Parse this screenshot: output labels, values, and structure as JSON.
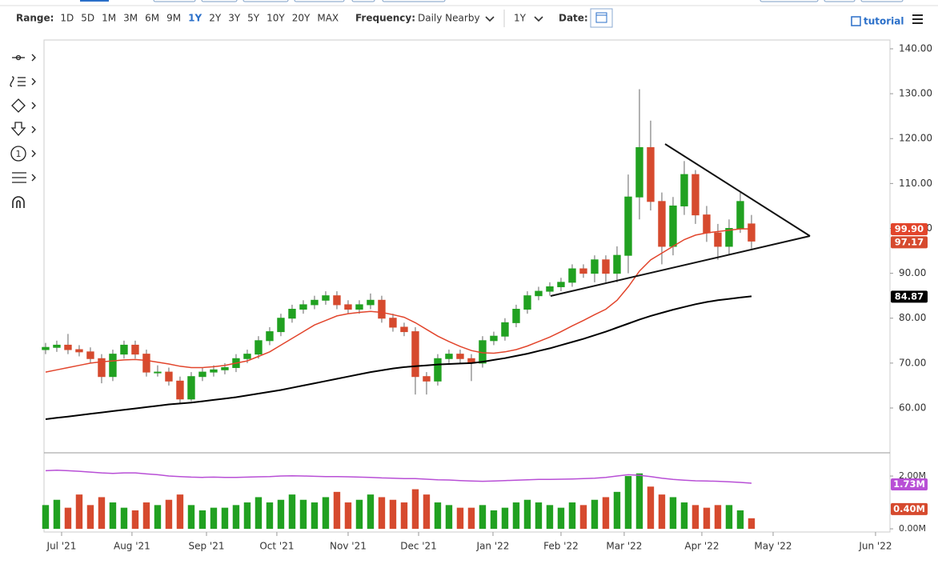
{
  "toolbar": {
    "range_label": "Range:",
    "ranges": [
      "1D",
      "5D",
      "1M",
      "3M",
      "6M",
      "9M",
      "1Y",
      "2Y",
      "3Y",
      "5Y",
      "10Y",
      "20Y",
      "MAX"
    ],
    "selected_range": 6,
    "frequency_label": "Frequency:",
    "frequency": "Daily Nearby",
    "period": "1Y",
    "date_label": "Date:",
    "tutorial": "tutorial"
  },
  "chart_data": {
    "type": "candlestick",
    "up_color": "#21a121",
    "down_color": "#d64a2e",
    "xlim": [
      -0.14,
      75.36
    ],
    "xticks": [
      {
        "value": 1.43,
        "label": "Jul '21"
      },
      {
        "value": 7.71,
        "label": "Aug '21"
      },
      {
        "value": 14.36,
        "label": "Sep '21"
      },
      {
        "value": 20.64,
        "label": "Oct '21"
      },
      {
        "value": 27,
        "label": "Nov '21"
      },
      {
        "value": 33.29,
        "label": "Dec '21"
      },
      {
        "value": 39.93,
        "label": "Jan '22"
      },
      {
        "value": 46,
        "label": "Feb '22"
      },
      {
        "value": 51.64,
        "label": "Mar '22"
      },
      {
        "value": 58.57,
        "label": "Apr '22"
      },
      {
        "value": 64.93,
        "label": "May '22"
      },
      {
        "value": 74.07,
        "label": "Jun '22"
      }
    ],
    "ylim": [
      50.2,
      141.96
    ],
    "yticks": [
      {
        "value": 60,
        "label": "60.00"
      },
      {
        "value": 70,
        "label": "70.00"
      },
      {
        "value": 80,
        "label": "80.00"
      },
      {
        "value": 90,
        "label": "90.00"
      },
      {
        "value": 100,
        "label": "100.00"
      },
      {
        "value": 110,
        "label": "110.00"
      },
      {
        "value": 120,
        "label": "120.00"
      },
      {
        "value": 130,
        "label": "130.00"
      },
      {
        "value": 140,
        "label": "140.00"
      }
    ],
    "open": [
      73,
      73.5,
      74,
      73,
      72.5,
      71,
      67,
      72,
      74,
      72,
      68,
      68,
      66,
      62,
      67,
      68,
      68.5,
      69,
      71,
      72,
      75,
      77,
      80,
      82,
      83,
      84,
      85,
      83,
      82,
      83,
      84,
      80,
      78,
      77,
      67,
      66,
      71,
      72,
      71,
      70,
      75,
      76,
      79,
      82,
      85,
      86,
      87,
      88,
      91,
      90,
      93,
      90,
      94,
      107,
      118,
      106,
      96,
      105,
      112,
      103,
      99,
      96,
      100,
      101
    ],
    "high": [
      74.5,
      75,
      76.5,
      74,
      73.5,
      72,
      73,
      75,
      75,
      73,
      69.5,
      69,
      67,
      68,
      69,
      69.5,
      70,
      72,
      73,
      76,
      78,
      81,
      83,
      84,
      85,
      86,
      86,
      84,
      84,
      85.5,
      85,
      81,
      79,
      78,
      68,
      72,
      73,
      73,
      72,
      76,
      77,
      80,
      83,
      86,
      87,
      88,
      89,
      92,
      92,
      94,
      94,
      96,
      112,
      131,
      124,
      108,
      107,
      115,
      113,
      105,
      101,
      102,
      108,
      103
    ],
    "low": [
      72,
      72.5,
      72,
      71.5,
      70,
      65.5,
      66,
      71,
      71,
      67,
      67,
      65,
      61,
      61.5,
      66,
      67,
      67.5,
      68,
      70,
      71,
      74,
      76,
      79,
      81,
      82,
      83,
      82,
      81,
      81,
      82,
      79,
      77,
      76,
      63,
      63,
      65,
      70,
      70,
      66,
      69,
      74,
      75,
      78,
      81,
      84,
      85,
      86,
      87,
      89,
      88,
      88,
      88,
      90,
      102,
      104,
      92,
      94,
      103,
      101,
      97,
      93,
      94,
      99,
      95.5
    ],
    "close": [
      73.5,
      74,
      73,
      72.5,
      71,
      67,
      72,
      74,
      72,
      68,
      68,
      66,
      62,
      67,
      68,
      68.5,
      69,
      71,
      72,
      75,
      77,
      80,
      82,
      83,
      84,
      85,
      83,
      82,
      83,
      84,
      80,
      78,
      77,
      67,
      66,
      71,
      72,
      71,
      70,
      75,
      76,
      79,
      82,
      85,
      86,
      87,
      88,
      91,
      90,
      93,
      90,
      94,
      107,
      118,
      106,
      96,
      105,
      112,
      103,
      99,
      96,
      100,
      106,
      97.17
    ],
    "last_label": "97.17",
    "overlays": [
      {
        "color": "#e2452c",
        "width": 1.5,
        "last_label": "99.90",
        "values": [
          68,
          68.5,
          69,
          69.5,
          70,
          70.3,
          70.5,
          70.7,
          70.8,
          70.6,
          70.2,
          69.8,
          69.3,
          69,
          69,
          69.2,
          69.5,
          70,
          70.5,
          71.5,
          72.5,
          74,
          75.5,
          77,
          78.5,
          79.5,
          80.5,
          81,
          81.3,
          81.5,
          81.3,
          80.8,
          80.2,
          79,
          77.5,
          76,
          74.8,
          73.7,
          72.8,
          72.3,
          72.2,
          72.5,
          73,
          73.8,
          74.8,
          75.8,
          77,
          78.3,
          79.5,
          80.8,
          82,
          84,
          87,
          90.5,
          93,
          94.5,
          96,
          97.5,
          98.5,
          99,
          99.3,
          99.6,
          99.9,
          99.9
        ]
      },
      {
        "color": "#000000",
        "width": 2,
        "last_label": "84.87",
        "values": [
          57.5,
          57.8,
          58.1,
          58.4,
          58.7,
          59,
          59.3,
          59.6,
          59.9,
          60.2,
          60.5,
          60.8,
          61,
          61.2,
          61.5,
          61.8,
          62.1,
          62.4,
          62.8,
          63.2,
          63.6,
          64,
          64.5,
          65,
          65.5,
          66,
          66.5,
          67,
          67.5,
          68,
          68.4,
          68.8,
          69.1,
          69.3,
          69.5,
          69.7,
          69.8,
          69.9,
          70,
          70.3,
          70.7,
          71.1,
          71.6,
          72.1,
          72.7,
          73.3,
          74,
          74.7,
          75.4,
          76.2,
          77,
          77.9,
          78.8,
          79.7,
          80.5,
          81.2,
          81.9,
          82.5,
          83.1,
          83.6,
          84,
          84.3,
          84.6,
          84.87
        ]
      }
    ],
    "volume": {
      "ylim": [
        -0.12,
        2.85
      ],
      "yticks": [
        {
          "value": 0,
          "label": "0.00M"
        },
        {
          "value": 2,
          "label": "2.00M"
        }
      ],
      "last_label": "0.40M",
      "values": [
        0.9,
        1.1,
        0.8,
        1.3,
        0.9,
        1.2,
        1.0,
        0.8,
        0.7,
        1.0,
        0.9,
        1.1,
        1.3,
        0.9,
        0.7,
        0.8,
        0.8,
        0.9,
        1.0,
        1.2,
        1.0,
        1.1,
        1.3,
        1.1,
        1.0,
        1.2,
        1.4,
        1.0,
        1.1,
        1.3,
        1.2,
        1.1,
        1.0,
        1.5,
        1.3,
        1.0,
        0.9,
        0.8,
        0.8,
        0.9,
        0.7,
        0.8,
        1.0,
        1.1,
        1.0,
        0.9,
        0.8,
        1.0,
        0.9,
        1.1,
        1.2,
        1.4,
        2.0,
        2.1,
        1.6,
        1.3,
        1.2,
        1.0,
        0.9,
        0.8,
        0.9,
        0.9,
        0.7,
        0.4
      ],
      "average": {
        "color": "#b84fd6",
        "last_label": "1.73M",
        "values": [
          2.2,
          2.22,
          2.2,
          2.18,
          2.15,
          2.12,
          2.1,
          2.12,
          2.12,
          2.08,
          2.05,
          2.0,
          1.98,
          1.96,
          1.95,
          1.96,
          1.95,
          1.95,
          1.96,
          1.97,
          1.98,
          2.0,
          2.01,
          2.0,
          1.99,
          1.98,
          1.98,
          1.97,
          1.96,
          1.95,
          1.93,
          1.92,
          1.9,
          1.9,
          1.88,
          1.86,
          1.85,
          1.83,
          1.81,
          1.8,
          1.81,
          1.83,
          1.84,
          1.86,
          1.87,
          1.87,
          1.88,
          1.89,
          1.9,
          1.92,
          1.95,
          2.0,
          2.05,
          2.03,
          1.98,
          1.92,
          1.87,
          1.84,
          1.82,
          1.81,
          1.8,
          1.78,
          1.76,
          1.73
        ]
      }
    }
  }
}
